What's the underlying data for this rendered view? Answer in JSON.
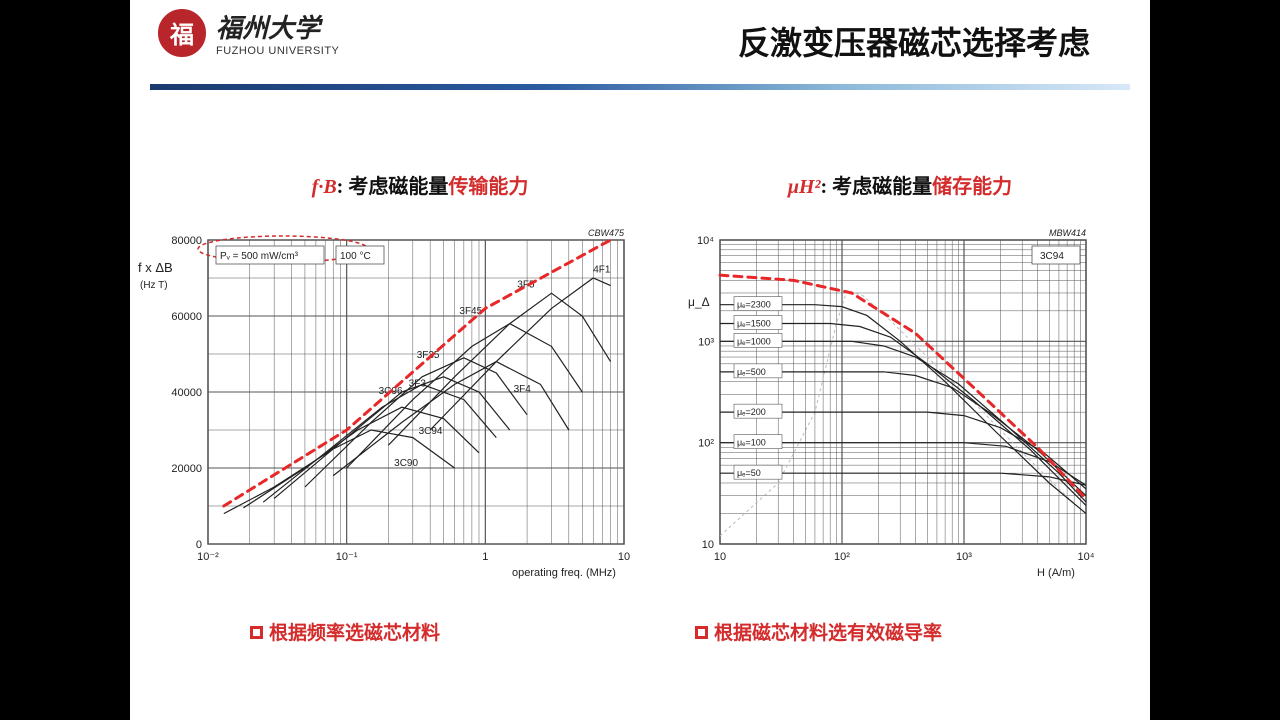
{
  "header": {
    "university_cn": "福州大学",
    "university_en": "FUZHOU UNIVERSITY",
    "logo_char": "福",
    "slide_title": "反激变压器磁芯选择考虑"
  },
  "colors": {
    "background": "#000000",
    "slide_bg": "#ffffff",
    "brand_red": "#b8262c",
    "accent_red": "#d42c2c",
    "envelope_red": "#e82828",
    "title_black": "#111111",
    "bar_gradient": [
      "#1a3a6e",
      "#2a5aa0",
      "#8ab8d8",
      "#d8e8f8"
    ],
    "grid": "#555555",
    "curve": "#222222",
    "light_curve": "#bbbbbb"
  },
  "left_panel": {
    "subtitle_prefix": "f·B",
    "subtitle_black": ": 考虑磁能量",
    "subtitle_red_tail": "传输能力",
    "caption": "根据频率选磁芯材料",
    "chart": {
      "type": "line",
      "yaxis_label": "f x ΔB",
      "yaxis_unit": "(Hz T)",
      "xaxis_label": "operating freq.  (MHz)",
      "corner_label": "CBW475",
      "box_labels": [
        "Pᵥ = 500 mW/cm³",
        "100 °C"
      ],
      "xscale": "log",
      "xlim": [
        0.01,
        10
      ],
      "xticks": [
        0.01,
        0.1,
        1,
        10
      ],
      "xticklabels": [
        "10⁻²",
        "10⁻¹",
        "1",
        "10"
      ],
      "yscale": "linear",
      "ylim": [
        0,
        80000
      ],
      "yticks": [
        0,
        20000,
        40000,
        60000,
        80000
      ],
      "grid_color": "#555555",
      "line_width": 1.2,
      "curve_labels": [
        "3C90",
        "3C94",
        "3C96",
        "3F3",
        "3F35",
        "3F45",
        "3F4",
        "3F5",
        "4F1"
      ],
      "envelope": {
        "color": "#e82828",
        "width": 3,
        "dash": "8 6",
        "points": [
          [
            0.013,
            10000
          ],
          [
            0.1,
            30000
          ],
          [
            1,
            62000
          ],
          [
            8,
            80000
          ]
        ]
      },
      "series": [
        {
          "label": "3C90",
          "pts": [
            [
              0.013,
              8000
            ],
            [
              0.03,
              15000
            ],
            [
              0.08,
              25000
            ],
            [
              0.15,
              30000
            ],
            [
              0.3,
              28000
            ],
            [
              0.6,
              20000
            ]
          ]
        },
        {
          "label": "3C94",
          "pts": [
            [
              0.018,
              9500
            ],
            [
              0.05,
              20000
            ],
            [
              0.12,
              30000
            ],
            [
              0.25,
              36000
            ],
            [
              0.5,
              33000
            ],
            [
              0.9,
              24000
            ]
          ]
        },
        {
          "label": "3C96",
          "pts": [
            [
              0.025,
              11000
            ],
            [
              0.07,
              24000
            ],
            [
              0.18,
              36000
            ],
            [
              0.35,
              42000
            ],
            [
              0.7,
              38000
            ],
            [
              1.2,
              28000
            ]
          ]
        },
        {
          "label": "3F3",
          "pts": [
            [
              0.03,
              12000
            ],
            [
              0.1,
              28000
            ],
            [
              0.25,
              40000
            ],
            [
              0.5,
              44000
            ],
            [
              0.9,
              40000
            ],
            [
              1.5,
              30000
            ]
          ]
        },
        {
          "label": "3F35",
          "pts": [
            [
              0.05,
              15000
            ],
            [
              0.15,
              32000
            ],
            [
              0.35,
              44000
            ],
            [
              0.7,
              49000
            ],
            [
              1.2,
              45000
            ],
            [
              2,
              34000
            ]
          ]
        },
        {
          "label": "3F4",
          "pts": [
            [
              0.08,
              18000
            ],
            [
              0.25,
              32000
            ],
            [
              0.6,
              42000
            ],
            [
              1.2,
              48000
            ],
            [
              2.5,
              42000
            ],
            [
              4,
              30000
            ]
          ]
        },
        {
          "label": "3F45",
          "pts": [
            [
              0.1,
              20000
            ],
            [
              0.3,
              38000
            ],
            [
              0.8,
              52000
            ],
            [
              1.5,
              58000
            ],
            [
              3,
              52000
            ],
            [
              5,
              40000
            ]
          ]
        },
        {
          "label": "3F5",
          "pts": [
            [
              0.2,
              26000
            ],
            [
              0.6,
              44000
            ],
            [
              1.5,
              58000
            ],
            [
              3,
              66000
            ],
            [
              5,
              60000
            ],
            [
              8,
              48000
            ]
          ]
        },
        {
          "label": "4F1",
          "pts": [
            [
              0.4,
              30000
            ],
            [
              1.2,
              48000
            ],
            [
              3,
              62000
            ],
            [
              6,
              70000
            ],
            [
              8,
              68000
            ]
          ]
        }
      ]
    }
  },
  "right_panel": {
    "subtitle_prefix": "μH²",
    "subtitle_black": ": 考虑磁能量",
    "subtitle_red_tail": "储存能力",
    "caption": "根据磁芯材料选有效磁导率",
    "chart": {
      "type": "line",
      "yaxis_label": "μ_Δ",
      "xaxis_label": "H  (A/m)",
      "corner_label": "MBW414",
      "legend_box": "3C94",
      "xscale": "log",
      "xlim": [
        10,
        10000
      ],
      "xticks": [
        10,
        100,
        1000,
        10000
      ],
      "xticklabels": [
        "10",
        "10²",
        "10³",
        "10⁴"
      ],
      "yscale": "log",
      "ylim": [
        10,
        10000
      ],
      "yticks": [
        10,
        100,
        1000,
        10000
      ],
      "yticklabels": [
        "10",
        "10²",
        "10³",
        "10⁴"
      ],
      "grid_color": "#555555",
      "line_width": 1.2,
      "mu_labels": [
        "μₑ=2300",
        "μₑ=1500",
        "μₑ=1000",
        "μₑ=500",
        "μₑ=200",
        "μₑ=100",
        "μₑ=50"
      ],
      "envelope": {
        "color": "#e82828",
        "width": 3,
        "dash": "8 6",
        "points": [
          [
            10,
            4500
          ],
          [
            40,
            4000
          ],
          [
            120,
            3000
          ],
          [
            400,
            1200
          ],
          [
            1200,
            350
          ],
          [
            4000,
            90
          ],
          [
            10000,
            28
          ]
        ]
      },
      "ungapped": {
        "color": "#bbbbbb",
        "dash": "3 3",
        "pts": [
          [
            10,
            12
          ],
          [
            30,
            40
          ],
          [
            60,
            200
          ],
          [
            90,
            1500
          ],
          [
            110,
            3200
          ],
          [
            150,
            2800
          ],
          [
            250,
            1600
          ],
          [
            500,
            700
          ],
          [
            1200,
            250
          ],
          [
            3000,
            80
          ],
          [
            8000,
            25
          ]
        ]
      },
      "series": [
        {
          "mu": 2300,
          "pts": [
            [
              10,
              2300
            ],
            [
              60,
              2300
            ],
            [
              100,
              2200
            ],
            [
              160,
              1800
            ],
            [
              300,
              1000
            ],
            [
              700,
              400
            ],
            [
              1800,
              130
            ],
            [
              5000,
              40
            ],
            [
              10000,
              20
            ]
          ]
        },
        {
          "mu": 1500,
          "pts": [
            [
              10,
              1500
            ],
            [
              80,
              1500
            ],
            [
              140,
              1400
            ],
            [
              250,
              1100
            ],
            [
              500,
              600
            ],
            [
              1200,
              260
            ],
            [
              3500,
              85
            ],
            [
              10000,
              24
            ]
          ]
        },
        {
          "mu": 1000,
          "pts": [
            [
              10,
              1000
            ],
            [
              120,
              1000
            ],
            [
              220,
              900
            ],
            [
              400,
              700
            ],
            [
              900,
              380
            ],
            [
              2200,
              150
            ],
            [
              6000,
              50
            ],
            [
              10000,
              26
            ]
          ]
        },
        {
          "mu": 500,
          "pts": [
            [
              10,
              500
            ],
            [
              220,
              500
            ],
            [
              400,
              460
            ],
            [
              800,
              350
            ],
            [
              1600,
              200
            ],
            [
              4000,
              85
            ],
            [
              10000,
              30
            ]
          ]
        },
        {
          "mu": 200,
          "pts": [
            [
              10,
              200
            ],
            [
              500,
              200
            ],
            [
              1000,
              185
            ],
            [
              2000,
              140
            ],
            [
              4500,
              80
            ],
            [
              10000,
              35
            ]
          ]
        },
        {
          "mu": 100,
          "pts": [
            [
              10,
              100
            ],
            [
              1000,
              100
            ],
            [
              2200,
              92
            ],
            [
              5000,
              65
            ],
            [
              10000,
              38
            ]
          ]
        },
        {
          "mu": 50,
          "pts": [
            [
              10,
              50
            ],
            [
              2000,
              50
            ],
            [
              5000,
              46
            ],
            [
              10000,
              38
            ]
          ]
        }
      ]
    }
  }
}
